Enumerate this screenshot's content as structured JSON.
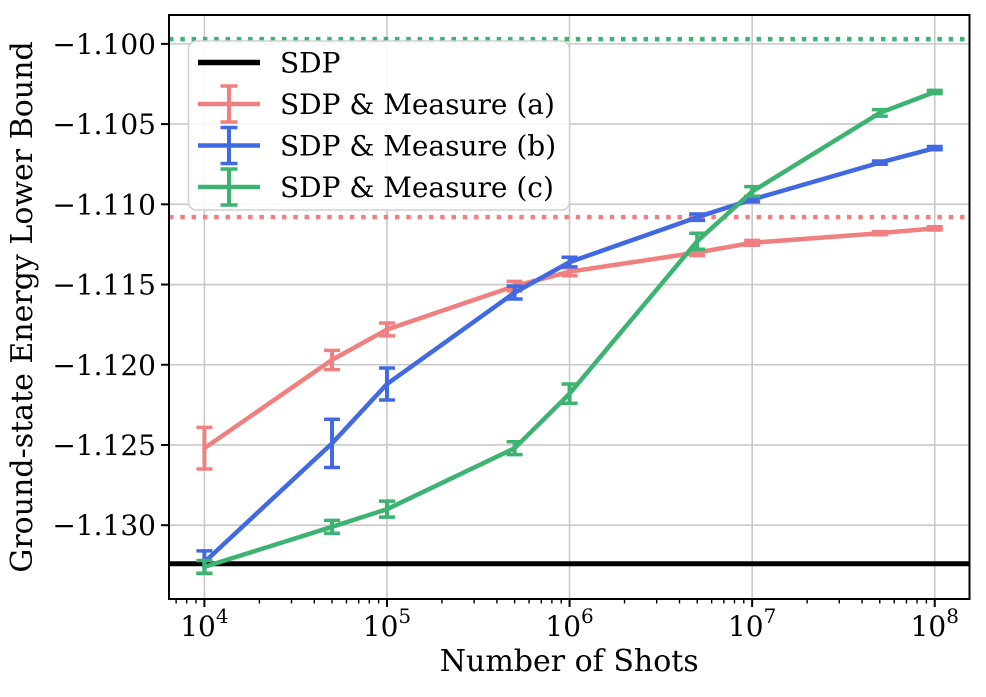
{
  "chart_data": {
    "type": "line",
    "title": "",
    "xlabel": "Number of Shots",
    "ylabel": "Ground-state Energy Lower Bound",
    "x_scale": "log",
    "xlim": [
      6400,
      155000000
    ],
    "ylim": [
      -1.1346,
      -1.0982
    ],
    "grid": true,
    "legend_position": "upper left",
    "x_ticks": [
      {
        "value": 10000,
        "base": "10",
        "exp": "4"
      },
      {
        "value": 100000,
        "base": "10",
        "exp": "5"
      },
      {
        "value": 1000000,
        "base": "10",
        "exp": "6"
      },
      {
        "value": 10000000,
        "base": "10",
        "exp": "7"
      },
      {
        "value": 100000000,
        "base": "10",
        "exp": "8"
      }
    ],
    "y_ticks": [
      {
        "value": -1.1,
        "label": "−1.100"
      },
      {
        "value": -1.105,
        "label": "−1.105"
      },
      {
        "value": -1.11,
        "label": "−1.110"
      },
      {
        "value": -1.115,
        "label": "−1.115"
      },
      {
        "value": -1.12,
        "label": "−1.120"
      },
      {
        "value": -1.125,
        "label": "−1.125"
      },
      {
        "value": -1.13,
        "label": "−1.130"
      }
    ],
    "hlines": [
      {
        "name": "sdp-bound-line",
        "label": "SDP",
        "value": -1.1324,
        "color": "#000000",
        "style": "solid",
        "width": 5
      },
      {
        "name": "measure-a-dotted-line",
        "value": -1.1108,
        "color": "#f08080",
        "style": "dotted",
        "width": 4.5
      },
      {
        "name": "measure-c-dotted-line",
        "value": -1.0997,
        "color": "#3cb371",
        "style": "dotted",
        "width": 4.5
      }
    ],
    "series": [
      {
        "name": "SDP & Measure (a)",
        "color": "#f08080",
        "x": [
          10000,
          50000,
          100000,
          500000,
          1000000,
          5000000,
          10000000,
          50000000,
          100000000
        ],
        "y": [
          -1.1252,
          -1.1197,
          -1.1178,
          -1.1151,
          -1.1142,
          -1.113,
          -1.1124,
          -1.1118,
          -1.1115
        ],
        "yerr": [
          0.0013,
          0.0006,
          0.0004,
          0.0003,
          0.00025,
          0.0002,
          0.00015,
          0.0001,
          0.0001
        ]
      },
      {
        "name": "SDP & Measure (b)",
        "color": "#4169e1",
        "x": [
          10000,
          50000,
          100000,
          500000,
          1000000,
          5000000,
          10000000,
          50000000,
          100000000
        ],
        "y": [
          -1.1323,
          -1.1249,
          -1.1212,
          -1.1155,
          -1.1136,
          -1.1108,
          -1.1097,
          -1.1074,
          -1.1065
        ],
        "yerr": [
          0.0007,
          0.0015,
          0.001,
          0.0004,
          0.0003,
          0.0002,
          0.00015,
          0.0001,
          0.0001
        ]
      },
      {
        "name": "SDP & Measure (c)",
        "color": "#3cb371",
        "x": [
          10000,
          50000,
          100000,
          500000,
          1000000,
          5000000,
          10000000,
          50000000,
          100000000
        ],
        "y": [
          -1.1326,
          -1.1301,
          -1.129,
          -1.1252,
          -1.1218,
          -1.1123,
          -1.1092,
          -1.1043,
          -1.103
        ],
        "yerr": [
          0.0004,
          0.0004,
          0.0005,
          0.0004,
          0.0006,
          0.0005,
          0.0003,
          0.0002,
          0.0001
        ]
      }
    ],
    "legend_entries": [
      {
        "label": "SDP",
        "color": "#000000",
        "marker": "line"
      },
      {
        "label": "SDP & Measure (a)",
        "color": "#f08080",
        "marker": "errorbar"
      },
      {
        "label": "SDP & Measure (b)",
        "color": "#4169e1",
        "marker": "errorbar"
      },
      {
        "label": "SDP & Measure (c)",
        "color": "#3cb371",
        "marker": "errorbar"
      }
    ],
    "colors": {
      "grid": "#c9c9c9",
      "spine": "#000000",
      "legend_border": "#d2d2d2"
    }
  }
}
